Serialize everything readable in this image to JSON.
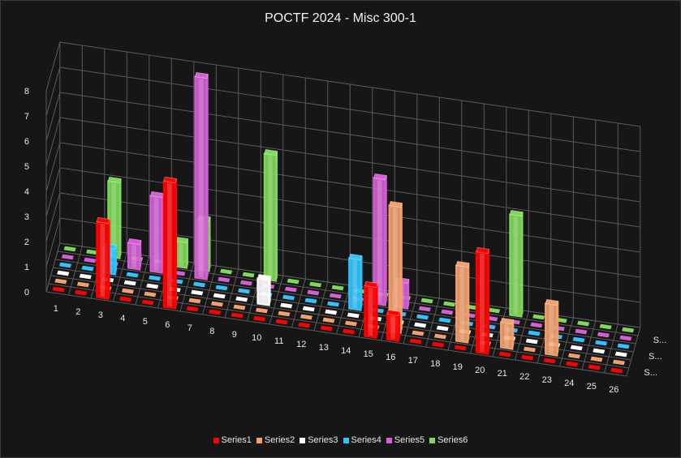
{
  "chart_data": {
    "type": "bar",
    "title": "POCTF 2024 - Misc 300-1",
    "categories": [
      "1",
      "2",
      "3",
      "4",
      "5",
      "6",
      "7",
      "8",
      "9",
      "10",
      "11",
      "12",
      "13",
      "14",
      "15",
      "16",
      "17",
      "18",
      "19",
      "20",
      "21",
      "22",
      "23",
      "24",
      "25",
      "26"
    ],
    "ylim": [
      0,
      8
    ],
    "yticks": [
      "0",
      "1",
      "2",
      "3",
      "4",
      "5",
      "6",
      "7",
      "8"
    ],
    "depth_axis_labels": [
      "S...",
      "S...",
      "S..."
    ],
    "grid": true,
    "legend_position": "bottom",
    "series": [
      {
        "name": "Series1",
        "color": "#ff0000",
        "values": [
          0,
          0,
          3,
          0,
          0,
          5,
          0,
          0,
          0,
          0,
          0,
          0,
          0,
          0,
          2,
          1,
          0,
          0,
          0,
          4,
          0,
          0,
          0,
          0,
          0,
          0
        ]
      },
      {
        "name": "Series2",
        "color": "#f4a06a",
        "values": [
          0,
          0,
          0,
          0,
          0,
          0,
          0,
          0,
          0,
          0,
          0,
          0,
          0,
          0,
          0,
          5,
          0,
          0,
          3,
          0,
          1,
          0,
          2,
          0,
          0,
          0
        ]
      },
      {
        "name": "Series3",
        "color": "#ffffff",
        "values": [
          0,
          0,
          0,
          0,
          0,
          0,
          0,
          0,
          0,
          1,
          0,
          0,
          0,
          0,
          0,
          0,
          0,
          0,
          0,
          0,
          0,
          0,
          0,
          0,
          0,
          0
        ]
      },
      {
        "name": "Series4",
        "color": "#2ec4ff",
        "values": [
          0,
          0,
          1,
          0,
          0,
          0,
          0,
          0,
          0,
          0,
          0,
          0,
          0,
          2,
          0,
          0,
          0,
          0,
          0,
          0,
          0,
          0,
          0,
          0,
          0,
          0
        ]
      },
      {
        "name": "Series5",
        "color": "#d65ed6",
        "values": [
          0,
          0,
          0,
          1,
          3,
          0,
          8,
          0,
          0,
          0,
          0,
          0,
          0,
          0,
          5,
          1,
          0,
          0,
          0,
          0,
          0,
          0,
          0,
          0,
          0,
          0
        ]
      },
      {
        "name": "Series6",
        "color": "#7ed957",
        "values": [
          0,
          0,
          3,
          0,
          0,
          1,
          2,
          0,
          0,
          5,
          0,
          0,
          0,
          0,
          0,
          0,
          0,
          0,
          0,
          0,
          4,
          0,
          0,
          0,
          0,
          0
        ]
      }
    ]
  }
}
